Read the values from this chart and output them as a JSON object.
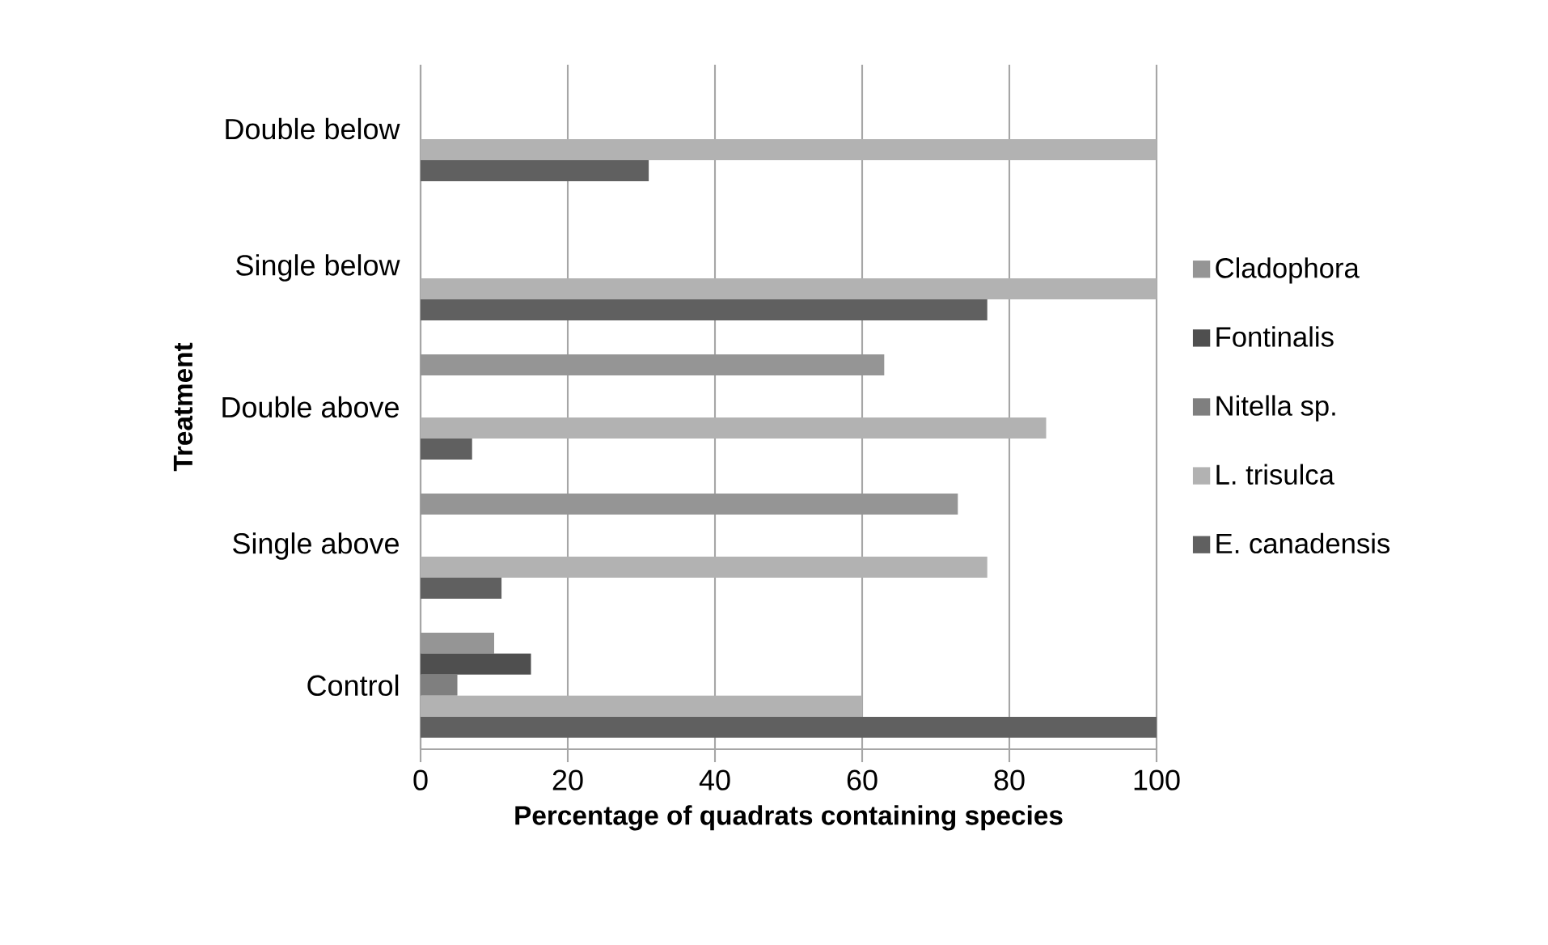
{
  "chart_data": {
    "type": "bar",
    "orientation": "horizontal",
    "xlabel": "Percentage of quadrats  containing species",
    "ylabel": "Treatment",
    "categories": [
      "Double below",
      "Single below",
      "Double above",
      "Single above",
      "Control"
    ],
    "series": [
      {
        "name": "Cladophora",
        "color": "#959595",
        "values": [
          null,
          null,
          63,
          73,
          10
        ]
      },
      {
        "name": "Fontinalis",
        "color": "#4f4f4f",
        "values": [
          null,
          null,
          null,
          null,
          15
        ]
      },
      {
        "name": "Nitella sp.",
        "color": "#7f7f7f",
        "values": [
          null,
          null,
          null,
          null,
          5
        ]
      },
      {
        "name": "L. trisulca",
        "color": "#b2b2b2",
        "values": [
          100,
          100,
          85,
          77,
          60
        ]
      },
      {
        "name": "E. canadensis",
        "color": "#606060",
        "values": [
          31,
          77,
          7,
          11,
          100
        ]
      }
    ],
    "xlim": [
      0,
      100
    ],
    "xticks": [
      0,
      20,
      40,
      60,
      80,
      100
    ],
    "grid": "x",
    "legend": "right"
  }
}
